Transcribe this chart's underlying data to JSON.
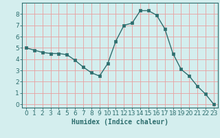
{
  "x": [
    0,
    1,
    2,
    3,
    4,
    5,
    6,
    7,
    8,
    9,
    10,
    11,
    12,
    13,
    14,
    15,
    16,
    17,
    18,
    19,
    20,
    21,
    22,
    23
  ],
  "y": [
    5.0,
    4.8,
    4.6,
    4.5,
    4.5,
    4.4,
    3.9,
    3.3,
    2.8,
    2.5,
    3.6,
    5.6,
    7.0,
    7.2,
    8.3,
    8.3,
    7.9,
    6.7,
    4.5,
    3.1,
    2.5,
    1.6,
    0.9,
    0.0
  ],
  "line_color": "#2d6e6e",
  "marker": "s",
  "marker_size": 2.5,
  "bg_color": "#d4eeee",
  "grid_color_v": "#e8a0a0",
  "grid_color_h": "#e8a0a0",
  "xlabel": "Humidex (Indice chaleur)",
  "xlim": [
    -0.5,
    23.5
  ],
  "ylim": [
    -0.3,
    9.0
  ],
  "yticks": [
    0,
    1,
    2,
    3,
    4,
    5,
    6,
    7,
    8
  ],
  "xticks": [
    0,
    1,
    2,
    3,
    4,
    5,
    6,
    7,
    8,
    9,
    10,
    11,
    12,
    13,
    14,
    15,
    16,
    17,
    18,
    19,
    20,
    21,
    22,
    23
  ],
  "xlabel_fontsize": 7,
  "tick_fontsize": 6.5,
  "font_color": "#2d6e6e",
  "spine_color": "#2d6e6e"
}
